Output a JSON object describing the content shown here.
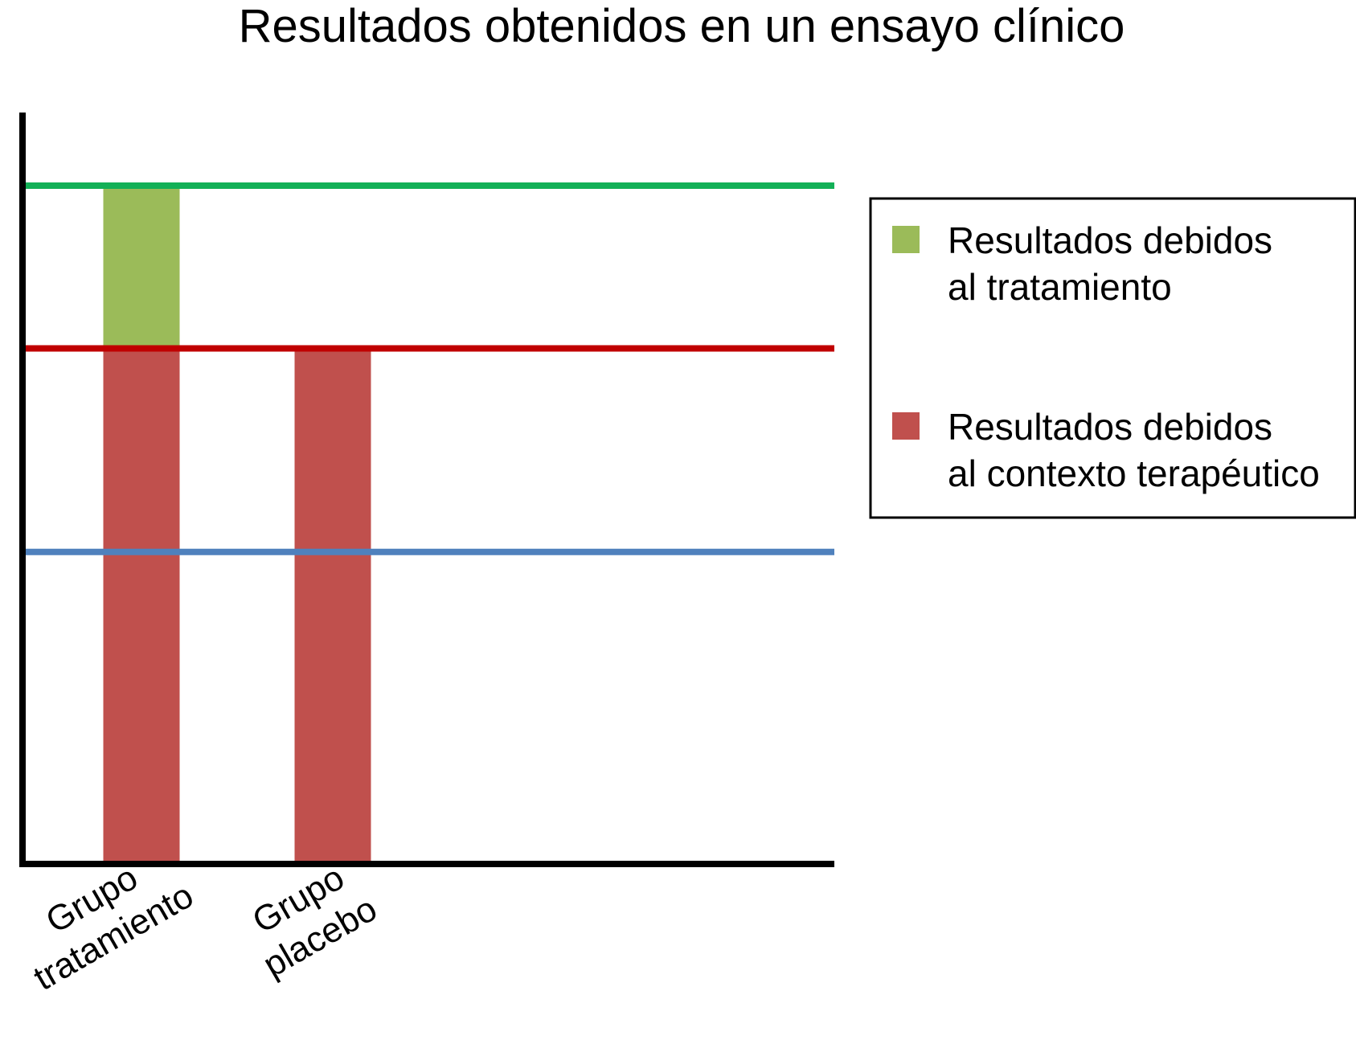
{
  "chart_data": {
    "type": "bar",
    "stacked": true,
    "title": "Resultados obtenidos en un ensayo clínico",
    "xlabel": "",
    "ylabel": "",
    "ylim": [
      0,
      100
    ],
    "grid": false,
    "legend_position": "right",
    "categories": [
      [
        "Grupo",
        "tratamiento"
      ],
      [
        "Grupo",
        "placebo"
      ]
    ],
    "series": [
      {
        "name": [
          "Resultados debidos",
          "al contexto terapéutico"
        ],
        "color": "#C0504D",
        "values": [
          76,
          76
        ]
      },
      {
        "name": [
          "Resultados debidos",
          "al tratamiento"
        ],
        "color": "#9BBB59",
        "values": [
          24,
          0
        ]
      }
    ],
    "legend_order": [
      1,
      0
    ],
    "reference_lines": [
      {
        "value": 100,
        "color": "#13B057"
      },
      {
        "value": 76,
        "color": "#C00000"
      },
      {
        "value": 46,
        "color": "#4F81BD"
      }
    ],
    "axis_color": "#000000"
  }
}
